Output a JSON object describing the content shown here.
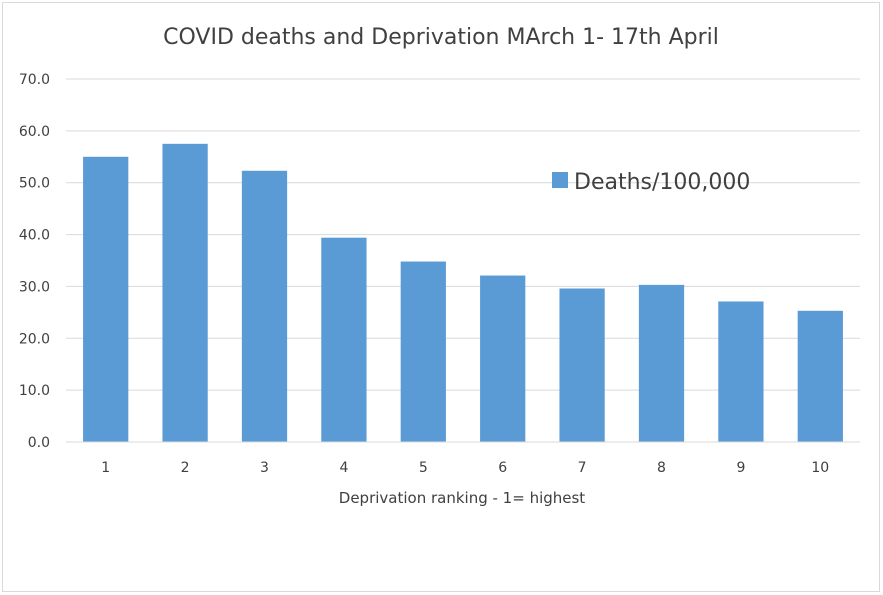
{
  "chart_data": {
    "type": "bar",
    "title": "COVID deaths and Deprivation MArch 1- 17th April",
    "xlabel": "Deprivation ranking - 1= highest",
    "ylabel": "",
    "categories": [
      "1",
      "2",
      "3",
      "4",
      "5",
      "6",
      "7",
      "8",
      "9",
      "10"
    ],
    "series": [
      {
        "name": "Deaths/100,000",
        "values": [
          55.0,
          57.5,
          52.3,
          39.4,
          34.8,
          32.1,
          29.6,
          30.3,
          27.1,
          25.3
        ],
        "color": "#5b9bd5"
      }
    ],
    "ylim": [
      0,
      70
    ],
    "yticks": [
      "0.0",
      "10.0",
      "20.0",
      "30.0",
      "40.0",
      "50.0",
      "60.0",
      "70.0"
    ],
    "grid": true,
    "legend_position": "right"
  }
}
